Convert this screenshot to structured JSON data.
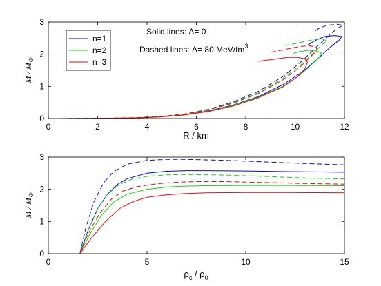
{
  "chart_data": [
    {
      "type": "line",
      "xlabel": "R / km",
      "ylabel": {
        "main": "M",
        "sep": " / ",
        "sub_main": "M",
        "sub": "⊙"
      },
      "xlim": [
        0,
        12
      ],
      "ylim": [
        0,
        3
      ],
      "xticks": [
        0,
        2,
        4,
        6,
        8,
        10,
        12
      ],
      "yticks": [
        0,
        1,
        2,
        3
      ],
      "xtick_labels": [
        "0",
        "2",
        "4",
        "6",
        "8",
        "10",
        "12"
      ],
      "ytick_labels": [
        "0",
        "1",
        "2",
        "3"
      ],
      "grid": false,
      "legend": {
        "placement": "top-left",
        "entries": [
          {
            "label": "n=1",
            "color": "#0000ff"
          },
          {
            "label": "n=2",
            "color": "#00dd00"
          },
          {
            "label": "n=3",
            "color": "#ff0000"
          }
        ]
      },
      "annotations": [
        {
          "label": "Solid lines: ",
          "symbol": "Λ",
          "rest": "= 0"
        },
        {
          "label": "Dashed lines: ",
          "symbol": "Λ",
          "rest": "= 80 MeV/fm",
          "sup": "3"
        }
      ],
      "series": [
        {
          "name": "n=1",
          "style": "solid",
          "color": "#0000ff",
          "points": [
            [
              0.5,
              0.001
            ],
            [
              1.5,
              0.003
            ],
            [
              2.5,
              0.008
            ],
            [
              3.5,
              0.02
            ],
            [
              4.5,
              0.05
            ],
            [
              5.5,
              0.11
            ],
            [
              6.5,
              0.24
            ],
            [
              7.5,
              0.42
            ],
            [
              8.5,
              0.68
            ],
            [
              9.5,
              1.05
            ],
            [
              10.3,
              1.45
            ],
            [
              10.9,
              1.85
            ],
            [
              11.4,
              2.2
            ],
            [
              11.8,
              2.45
            ],
            [
              11.9,
              2.55
            ],
            [
              11.6,
              2.58
            ],
            [
              11.2,
              2.55
            ],
            [
              10.8,
              2.42
            ],
            [
              10.5,
              2.28
            ]
          ]
        },
        {
          "name": "n=1",
          "style": "dashed",
          "color": "#0000ff",
          "points": [
            [
              0.5,
              0.001
            ],
            [
              1.5,
              0.004
            ],
            [
              2.5,
              0.01
            ],
            [
              3.5,
              0.025
            ],
            [
              4.5,
              0.06
            ],
            [
              5.5,
              0.14
            ],
            [
              6.5,
              0.29
            ],
            [
              7.5,
              0.52
            ],
            [
              8.5,
              0.84
            ],
            [
              9.5,
              1.3
            ],
            [
              10.3,
              1.8
            ],
            [
              10.9,
              2.25
            ],
            [
              11.4,
              2.6
            ],
            [
              11.7,
              2.8
            ],
            [
              11.95,
              2.9
            ],
            [
              11.7,
              2.93
            ],
            [
              11.3,
              2.9
            ],
            [
              11.0,
              2.82
            ],
            [
              10.8,
              2.72
            ]
          ]
        },
        {
          "name": "n=2",
          "style": "solid",
          "color": "#00dd00",
          "points": [
            [
              0.5,
              0.001
            ],
            [
              1.5,
              0.003
            ],
            [
              2.5,
              0.008
            ],
            [
              3.5,
              0.02
            ],
            [
              4.5,
              0.05
            ],
            [
              5.5,
              0.11
            ],
            [
              6.5,
              0.23
            ],
            [
              7.5,
              0.41
            ],
            [
              8.5,
              0.66
            ],
            [
              9.5,
              1.0
            ],
            [
              10.2,
              1.35
            ],
            [
              10.7,
              1.7
            ],
            [
              11.0,
              1.92
            ],
            [
              11.05,
              2.05
            ],
            [
              10.8,
              2.12
            ],
            [
              10.5,
              2.12
            ],
            [
              10.2,
              2.08
            ],
            [
              9.9,
              2.02
            ]
          ]
        },
        {
          "name": "n=2",
          "style": "dashed",
          "color": "#00dd00",
          "points": [
            [
              0.5,
              0.001
            ],
            [
              1.5,
              0.004
            ],
            [
              2.5,
              0.01
            ],
            [
              3.5,
              0.025
            ],
            [
              4.5,
              0.06
            ],
            [
              5.5,
              0.14
            ],
            [
              6.5,
              0.28
            ],
            [
              7.5,
              0.5
            ],
            [
              8.5,
              0.8
            ],
            [
              9.5,
              1.24
            ],
            [
              10.2,
              1.65
            ],
            [
              10.7,
              2.0
            ],
            [
              11.1,
              2.3
            ],
            [
              11.3,
              2.42
            ],
            [
              11.1,
              2.47
            ],
            [
              10.8,
              2.46
            ],
            [
              10.4,
              2.4
            ],
            [
              10.0,
              2.33
            ],
            [
              9.6,
              2.27
            ]
          ]
        },
        {
          "name": "n=3",
          "style": "solid",
          "color": "#ff0000",
          "points": [
            [
              0.5,
              0.001
            ],
            [
              1.5,
              0.003
            ],
            [
              2.5,
              0.008
            ],
            [
              3.5,
              0.02
            ],
            [
              4.5,
              0.05
            ],
            [
              5.5,
              0.11
            ],
            [
              6.5,
              0.22
            ],
            [
              7.5,
              0.39
            ],
            [
              8.5,
              0.64
            ],
            [
              9.5,
              0.98
            ],
            [
              10.1,
              1.3
            ],
            [
              10.4,
              1.55
            ],
            [
              10.5,
              1.75
            ],
            [
              10.4,
              1.86
            ],
            [
              10.1,
              1.9
            ],
            [
              9.7,
              1.9
            ],
            [
              9.3,
              1.86
            ],
            [
              8.9,
              1.82
            ],
            [
              8.5,
              1.78
            ]
          ]
        },
        {
          "name": "n=3",
          "style": "dashed",
          "color": "#ff0000",
          "points": [
            [
              0.5,
              0.001
            ],
            [
              1.5,
              0.004
            ],
            [
              2.5,
              0.01
            ],
            [
              3.5,
              0.025
            ],
            [
              4.5,
              0.06
            ],
            [
              5.5,
              0.13
            ],
            [
              6.5,
              0.27
            ],
            [
              7.5,
              0.48
            ],
            [
              8.5,
              0.77
            ],
            [
              9.5,
              1.2
            ],
            [
              10.2,
              1.6
            ],
            [
              10.6,
              1.9
            ],
            [
              10.9,
              2.12
            ],
            [
              10.85,
              2.22
            ],
            [
              10.6,
              2.26
            ],
            [
              10.2,
              2.24
            ],
            [
              9.8,
              2.18
            ],
            [
              9.4,
              2.12
            ],
            [
              9.0,
              2.06
            ]
          ]
        }
      ]
    },
    {
      "type": "line",
      "xlabel": {
        "main": "ρ",
        "main_sub": "c",
        "sep": " / ",
        "denom": "ρ",
        "denom_sub": "0"
      },
      "ylabel": {
        "main": "M",
        "sep": " / ",
        "sub_main": "M",
        "sub": "⊙"
      },
      "xlim": [
        0,
        15
      ],
      "ylim": [
        0,
        3
      ],
      "xticks": [
        0,
        5,
        10,
        15
      ],
      "yticks": [
        0,
        1,
        2,
        3
      ],
      "xtick_labels": [
        "0",
        "5",
        "10",
        "15"
      ],
      "ytick_labels": [
        "0",
        "1",
        "2",
        "3"
      ],
      "grid": false,
      "series": [
        {
          "name": "n=1",
          "style": "solid",
          "color": "#0000ff",
          "points": [
            [
              1.6,
              0.0
            ],
            [
              2.0,
              0.7
            ],
            [
              2.5,
              1.4
            ],
            [
              3.0,
              1.85
            ],
            [
              3.5,
              2.15
            ],
            [
              4.0,
              2.33
            ],
            [
              5.0,
              2.5
            ],
            [
              6.0,
              2.56
            ],
            [
              7.0,
              2.58
            ],
            [
              8.0,
              2.58
            ],
            [
              10.0,
              2.57
            ],
            [
              12.0,
              2.55
            ],
            [
              15.0,
              2.53
            ]
          ]
        },
        {
          "name": "n=1",
          "style": "dashed",
          "color": "#0000ff",
          "points": [
            [
              1.6,
              0.0
            ],
            [
              1.9,
              0.8
            ],
            [
              2.3,
              1.6
            ],
            [
              2.8,
              2.2
            ],
            [
              3.3,
              2.55
            ],
            [
              4.0,
              2.78
            ],
            [
              5.0,
              2.9
            ],
            [
              6.0,
              2.93
            ],
            [
              7.0,
              2.93
            ],
            [
              9.0,
              2.9
            ],
            [
              11.0,
              2.85
            ],
            [
              13.0,
              2.8
            ],
            [
              15.0,
              2.76
            ]
          ]
        },
        {
          "name": "n=2",
          "style": "solid",
          "color": "#00dd00",
          "points": [
            [
              1.6,
              0.0
            ],
            [
              2.1,
              0.6
            ],
            [
              2.7,
              1.2
            ],
            [
              3.3,
              1.6
            ],
            [
              4.0,
              1.85
            ],
            [
              5.0,
              2.0
            ],
            [
              6.0,
              2.07
            ],
            [
              7.0,
              2.1
            ],
            [
              8.0,
              2.11
            ],
            [
              10.0,
              2.12
            ],
            [
              12.0,
              2.12
            ],
            [
              15.0,
              2.11
            ]
          ]
        },
        {
          "name": "n=2",
          "style": "dashed",
          "color": "#00dd00",
          "points": [
            [
              1.6,
              0.0
            ],
            [
              2.0,
              0.7
            ],
            [
              2.5,
              1.4
            ],
            [
              3.0,
              1.85
            ],
            [
              3.6,
              2.15
            ],
            [
              4.3,
              2.33
            ],
            [
              5.0,
              2.4
            ],
            [
              6.0,
              2.45
            ],
            [
              7.0,
              2.46
            ],
            [
              9.0,
              2.44
            ],
            [
              11.0,
              2.4
            ],
            [
              13.0,
              2.35
            ],
            [
              15.0,
              2.32
            ]
          ]
        },
        {
          "name": "n=3",
          "style": "solid",
          "color": "#ff0000",
          "points": [
            [
              1.6,
              0.0
            ],
            [
              2.2,
              0.5
            ],
            [
              2.9,
              1.0
            ],
            [
              3.6,
              1.4
            ],
            [
              4.3,
              1.62
            ],
            [
              5.0,
              1.75
            ],
            [
              6.0,
              1.83
            ],
            [
              7.0,
              1.87
            ],
            [
              8.0,
              1.89
            ],
            [
              10.0,
              1.9
            ],
            [
              12.0,
              1.9
            ],
            [
              15.0,
              1.89
            ]
          ]
        },
        {
          "name": "n=3",
          "style": "dashed",
          "color": "#ff0000",
          "points": [
            [
              1.6,
              0.0
            ],
            [
              2.0,
              0.6
            ],
            [
              2.6,
              1.25
            ],
            [
              3.2,
              1.7
            ],
            [
              3.8,
              1.95
            ],
            [
              4.5,
              2.08
            ],
            [
              5.5,
              2.17
            ],
            [
              6.5,
              2.22
            ],
            [
              7.5,
              2.24
            ],
            [
              9.0,
              2.24
            ],
            [
              11.0,
              2.21
            ],
            [
              13.0,
              2.18
            ],
            [
              15.0,
              2.16
            ]
          ]
        }
      ]
    }
  ]
}
